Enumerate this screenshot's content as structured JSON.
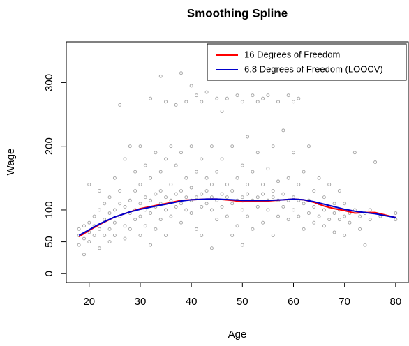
{
  "chart_data": {
    "type": "scatter",
    "title": "Smoothing Spline",
    "x_label": "Age",
    "y_label": "Wage",
    "xlim": [
      15.52,
      82.48
    ],
    "ylim": [
      -14,
      364
    ],
    "xticks": [
      20,
      30,
      40,
      50,
      60,
      70,
      80
    ],
    "yticks": [
      0,
      50,
      100,
      200,
      300
    ],
    "legend_position": "top-right",
    "points": {
      "color": "#a0a0a0",
      "x": [
        18,
        18,
        18,
        19,
        19,
        19,
        20,
        20,
        20,
        20,
        21,
        21,
        21,
        22,
        22,
        22,
        22,
        23,
        23,
        23,
        24,
        24,
        24,
        24,
        25,
        25,
        25,
        25,
        26,
        26,
        26,
        26,
        27,
        27,
        27,
        27,
        28,
        28,
        28,
        28,
        29,
        29,
        29,
        29,
        30,
        30,
        30,
        30,
        30,
        31,
        31,
        31,
        31,
        32,
        32,
        32,
        32,
        32,
        33,
        33,
        33,
        33,
        34,
        34,
        34,
        34,
        34,
        35,
        35,
        35,
        35,
        35,
        36,
        36,
        36,
        36,
        37,
        37,
        37,
        37,
        38,
        38,
        38,
        38,
        38,
        39,
        39,
        39,
        39,
        40,
        40,
        40,
        40,
        40,
        41,
        41,
        41,
        41,
        42,
        42,
        42,
        42,
        42,
        43,
        43,
        43,
        43,
        44,
        44,
        44,
        44,
        44,
        45,
        45,
        45,
        45,
        46,
        46,
        46,
        46,
        47,
        47,
        47,
        47,
        48,
        48,
        48,
        48,
        49,
        49,
        49,
        49,
        50,
        50,
        50,
        50,
        50,
        51,
        51,
        51,
        51,
        52,
        52,
        52,
        52,
        53,
        53,
        53,
        53,
        54,
        54,
        54,
        54,
        55,
        55,
        55,
        55,
        56,
        56,
        56,
        56,
        57,
        57,
        57,
        57,
        58,
        58,
        58,
        58,
        59,
        59,
        59,
        59,
        60,
        60,
        60,
        60,
        61,
        61,
        61,
        61,
        62,
        62,
        62,
        63,
        63,
        63,
        64,
        64,
        64,
        65,
        65,
        65,
        66,
        66,
        66,
        67,
        67,
        67,
        68,
        68,
        68,
        69,
        69,
        69,
        70,
        70,
        70,
        71,
        71,
        72,
        72,
        73,
        73,
        74,
        74,
        75,
        75,
        76,
        77,
        80,
        80
      ],
      "y": [
        60,
        70,
        45,
        75,
        55,
        30,
        80,
        65,
        50,
        140,
        90,
        60,
        75,
        100,
        70,
        40,
        130,
        85,
        110,
        60,
        95,
        120,
        70,
        50,
        100,
        80,
        150,
        60,
        110,
        90,
        265,
        130,
        105,
        75,
        180,
        55,
        115,
        95,
        200,
        70,
        100,
        130,
        85,
        160,
        110,
        90,
        140,
        60,
        200,
        120,
        100,
        170,
        75,
        115,
        95,
        275,
        150,
        45,
        125,
        105,
        190,
        70,
        130,
        110,
        310,
        85,
        160,
        120,
        100,
        270,
        180,
        60,
        115,
        140,
        90,
        200,
        125,
        105,
        265,
        170,
        130,
        110,
        315,
        80,
        190,
        120,
        150,
        100,
        270,
        115,
        135,
        95,
        200,
        295,
        120,
        160,
        280,
        70,
        125,
        105,
        180,
        60,
        270,
        130,
        110,
        285,
        150,
        120,
        140,
        100,
        200,
        40,
        115,
        160,
        275,
        85,
        125,
        105,
        255,
        180,
        120,
        140,
        90,
        275,
        130,
        110,
        200,
        60,
        115,
        150,
        280,
        75,
        120,
        100,
        170,
        270,
        45,
        125,
        140,
        90,
        215,
        115,
        160,
        280,
        70,
        120,
        105,
        190,
        270,
        125,
        140,
        80,
        275,
        115,
        165,
        100,
        280,
        120,
        130,
        200,
        60,
        115,
        145,
        270,
        90,
        125,
        105,
        225,
        310,
        115,
        150,
        85,
        280,
        120,
        100,
        190,
        270,
        115,
        140,
        90,
        275,
        110,
        160,
        70,
        115,
        95,
        200,
        105,
        130,
        80,
        110,
        90,
        150,
        100,
        120,
        75,
        105,
        140,
        85,
        95,
        110,
        65,
        100,
        85,
        130,
        110,
        90,
        60,
        95,
        80,
        100,
        190,
        90,
        70,
        95,
        45,
        85,
        100,
        175,
        90,
        95,
        85
      ]
    },
    "series": [
      {
        "name": "16 Degrees of Freedom",
        "color": "#ff0000",
        "x": [
          18,
          20,
          22,
          25,
          28,
          30,
          33,
          35,
          38,
          40,
          43,
          45,
          48,
          50,
          53,
          55,
          58,
          60,
          62,
          64,
          66,
          68,
          70,
          72,
          74,
          76,
          78,
          80
        ],
        "values": [
          58,
          68,
          77,
          89,
          97,
          102,
          107,
          110,
          115,
          116,
          117,
          117,
          115,
          113,
          114,
          114,
          116,
          117,
          116,
          112,
          106,
          102,
          99,
          95,
          96,
          96,
          92,
          88
        ]
      },
      {
        "name": "6.8 Degrees of Freedom (LOOCV)",
        "color": "#0000cc",
        "x": [
          18,
          20,
          22,
          25,
          28,
          30,
          33,
          35,
          38,
          40,
          43,
          45,
          48,
          50,
          53,
          55,
          58,
          60,
          62,
          64,
          66,
          68,
          70,
          72,
          74,
          76,
          78,
          80
        ],
        "values": [
          60,
          69,
          78,
          89,
          97,
          101,
          106,
          109,
          114,
          116,
          117,
          117,
          116,
          115,
          115,
          115,
          116,
          117,
          116,
          113,
          109,
          105,
          101,
          98,
          96,
          94,
          91,
          88
        ]
      }
    ]
  }
}
